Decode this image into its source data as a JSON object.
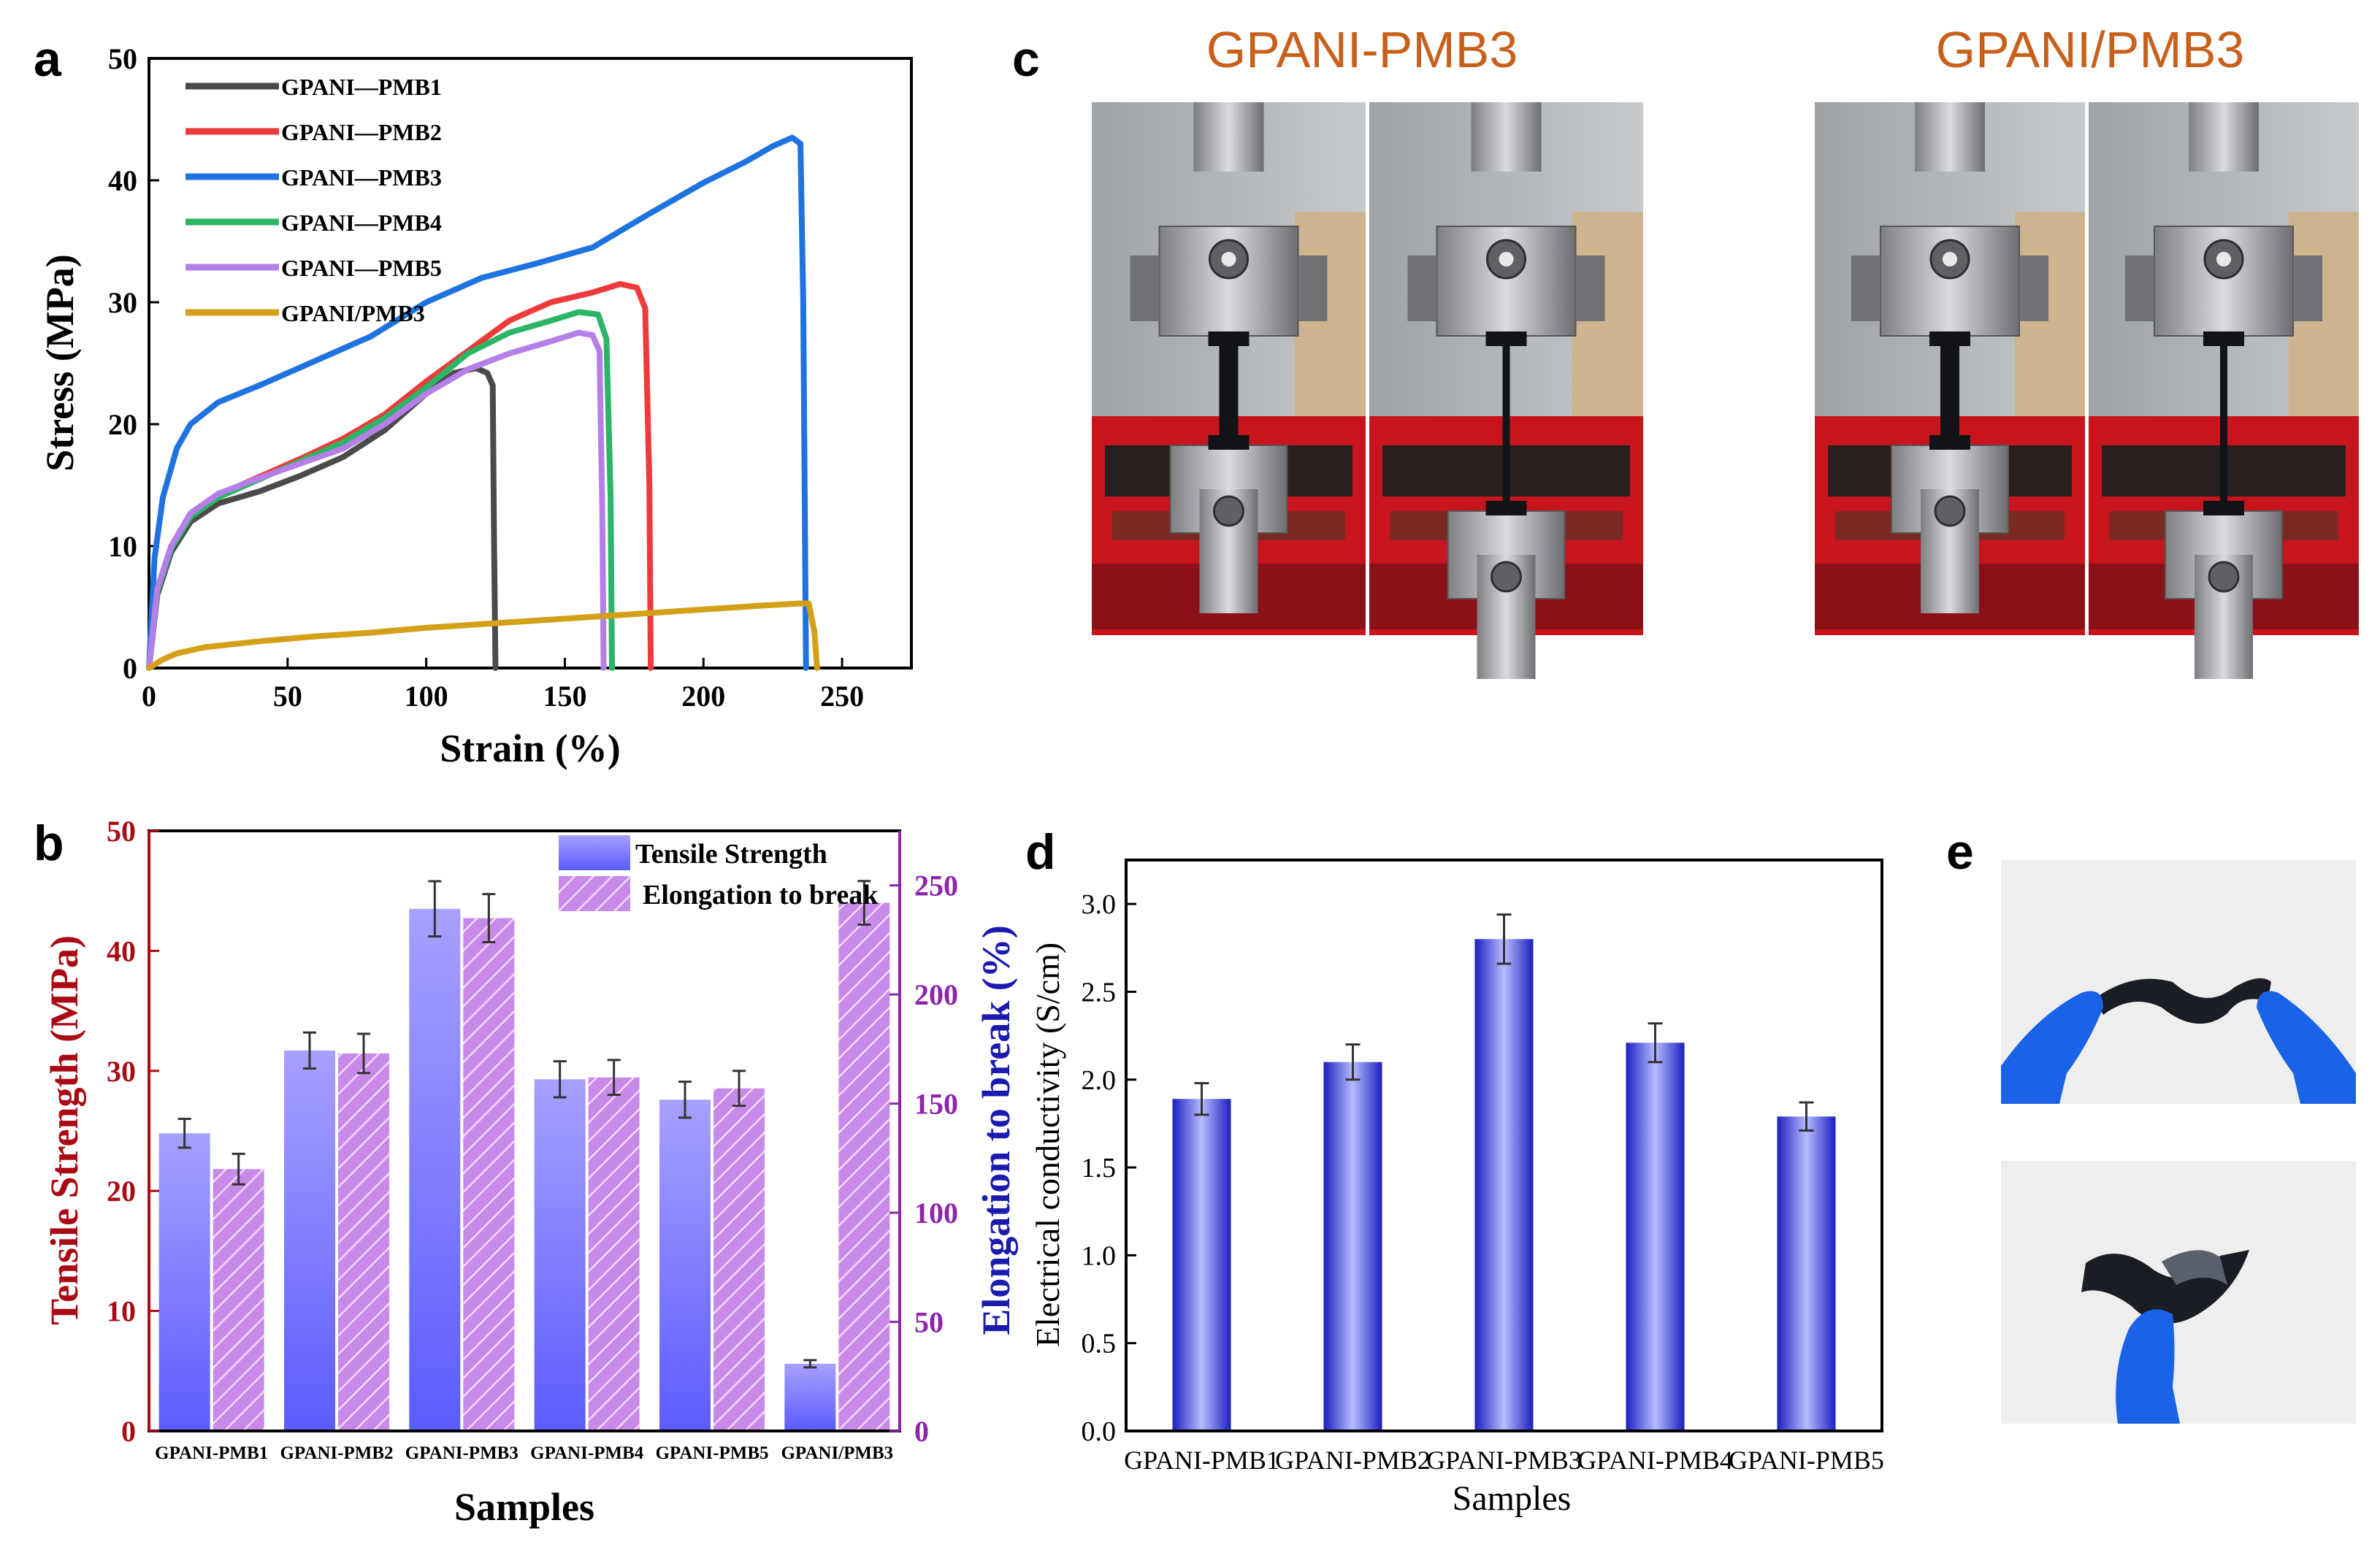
{
  "chart_data": [
    {
      "panel": "a",
      "type": "line",
      "xlabel": "Strain (%)",
      "ylabel": "Stress (MPa)",
      "xlim": [
        0,
        275
      ],
      "ylim": [
        0,
        50
      ],
      "xticks": [
        0,
        50,
        100,
        150,
        200,
        250
      ],
      "yticks": [
        0,
        10,
        20,
        30,
        40,
        50
      ],
      "legend_position": "top-left",
      "series": [
        {
          "name": "GPANI—PMB1",
          "color": "#4a4a4a",
          "x": [
            0,
            3,
            8,
            15,
            25,
            40,
            55,
            70,
            85,
            100,
            110,
            118,
            122,
            124,
            124.5,
            125
          ],
          "y": [
            0,
            6,
            9.5,
            12,
            13.5,
            14.5,
            15.8,
            17.3,
            19.5,
            22.5,
            24.2,
            24.6,
            24.2,
            23.2,
            10,
            0
          ]
        },
        {
          "name": "GPANI—PMB2",
          "color": "#ee3a3a",
          "x": [
            0,
            3,
            8,
            15,
            25,
            40,
            55,
            70,
            85,
            100,
            115,
            130,
            145,
            160,
            170,
            176,
            179,
            180.5,
            181
          ],
          "y": [
            0,
            6.5,
            10,
            12.5,
            14.2,
            15.7,
            17.2,
            18.8,
            20.8,
            23.5,
            26,
            28.5,
            30,
            30.8,
            31.5,
            31.2,
            29.5,
            15,
            0
          ]
        },
        {
          "name": "GPANI—PMB3",
          "color": "#1f73e0",
          "x": [
            0,
            2,
            5,
            10,
            15,
            25,
            40,
            60,
            80,
            100,
            120,
            140,
            160,
            180,
            200,
            215,
            225,
            232,
            235,
            236,
            237
          ],
          "y": [
            0,
            9,
            14,
            18,
            20,
            21.8,
            23.2,
            25.2,
            27.2,
            30,
            32,
            33.2,
            34.5,
            37.2,
            39.8,
            41.5,
            42.8,
            43.5,
            43,
            30,
            0
          ]
        },
        {
          "name": "GPANI—PMB4",
          "color": "#2bb566",
          "x": [
            0,
            3,
            8,
            15,
            25,
            40,
            55,
            70,
            85,
            100,
            115,
            130,
            145,
            155,
            162,
            165,
            166.5,
            167
          ],
          "y": [
            0,
            6.3,
            9.8,
            12.4,
            14,
            15.5,
            17,
            18.5,
            20.5,
            23,
            25.8,
            27.5,
            28.5,
            29.2,
            29,
            27,
            14,
            0
          ]
        },
        {
          "name": "GPANI—PMB5",
          "color": "#b57fe8",
          "x": [
            0,
            3,
            8,
            15,
            25,
            40,
            55,
            70,
            85,
            100,
            115,
            130,
            145,
            155,
            160,
            162.5,
            163.5,
            164
          ],
          "y": [
            0,
            6.5,
            10,
            12.7,
            14.3,
            15.6,
            16.8,
            18,
            20,
            22.5,
            24.5,
            25.8,
            26.8,
            27.5,
            27.3,
            26,
            13,
            0
          ]
        },
        {
          "name": "GPANI/PMB3",
          "color": "#d4a017",
          "x": [
            0,
            5,
            10,
            20,
            40,
            60,
            80,
            100,
            120,
            140,
            160,
            180,
            200,
            220,
            235,
            238,
            240,
            241
          ],
          "y": [
            0,
            0.7,
            1.2,
            1.7,
            2.2,
            2.6,
            2.9,
            3.3,
            3.6,
            3.9,
            4.2,
            4.5,
            4.8,
            5.1,
            5.3,
            5.3,
            3,
            0
          ]
        }
      ]
    },
    {
      "panel": "b",
      "type": "bar",
      "categories": [
        "GPANI-PMB1",
        "GPANI-PMB2",
        "GPANI-PMB3",
        "GPANI-PMB4",
        "GPANI-PMB5",
        "GPANI/PMB3"
      ],
      "xlabel": "Samples",
      "ylabel": "Tensile Strength (MPa)",
      "y2label": "Elongation to break (%)",
      "ylim": [
        0,
        50
      ],
      "y2lim": [
        0,
        275
      ],
      "yticks": [
        0,
        10,
        20,
        30,
        40,
        50
      ],
      "y2ticks": [
        0,
        50,
        100,
        150,
        200,
        250
      ],
      "series": [
        {
          "name": "Tensile Strength",
          "axis": "left",
          "values": [
            24.8,
            31.7,
            43.5,
            29.3,
            27.6,
            5.6
          ],
          "errors": [
            1.2,
            1.5,
            2.3,
            1.5,
            1.5,
            0.3
          ]
        },
        {
          "name": "Elongation to break",
          "axis": "right",
          "values": [
            120,
            173,
            235,
            162,
            157,
            242
          ],
          "errors": [
            7,
            9,
            11,
            8,
            8,
            10
          ]
        }
      ]
    },
    {
      "panel": "d",
      "type": "bar",
      "categories": [
        "GPANI-PMB1",
        "GPANI-PMB2",
        "GPANI-PMB3",
        "GPANI-PMB4",
        "GPANI-PMB5"
      ],
      "xlabel": "Samples",
      "ylabel": "Electrical conductivity (S/cm)",
      "ylim": [
        0,
        3.25
      ],
      "yticks": [
        0.0,
        0.5,
        1.0,
        1.5,
        2.0,
        2.5,
        3.0
      ],
      "ytick_labels": [
        "0.0",
        "0.5",
        "1.0",
        "1.5",
        "2.0",
        "2.5",
        "3.0"
      ],
      "values": [
        1.89,
        2.1,
        2.8,
        2.21,
        1.79
      ],
      "errors": [
        0.09,
        0.1,
        0.14,
        0.11,
        0.08
      ]
    }
  ],
  "panel_labels": {
    "a": "a",
    "b": "b",
    "c": "c",
    "d": "d",
    "e": "e"
  },
  "photos_c": {
    "title_left": "GPANI-PMB3",
    "title_right": "GPANI/PMB3"
  },
  "colors": {
    "red_axis": "#aa0a14",
    "purple_axis": "#8e24aa",
    "blue_label": "#1b1bb0",
    "photo_title": "#c8601c",
    "bar_blue_top": "#2e36e6",
    "bar_blue_bottom": "#b9b4ff",
    "hatch_fill": "#c87ae0"
  }
}
